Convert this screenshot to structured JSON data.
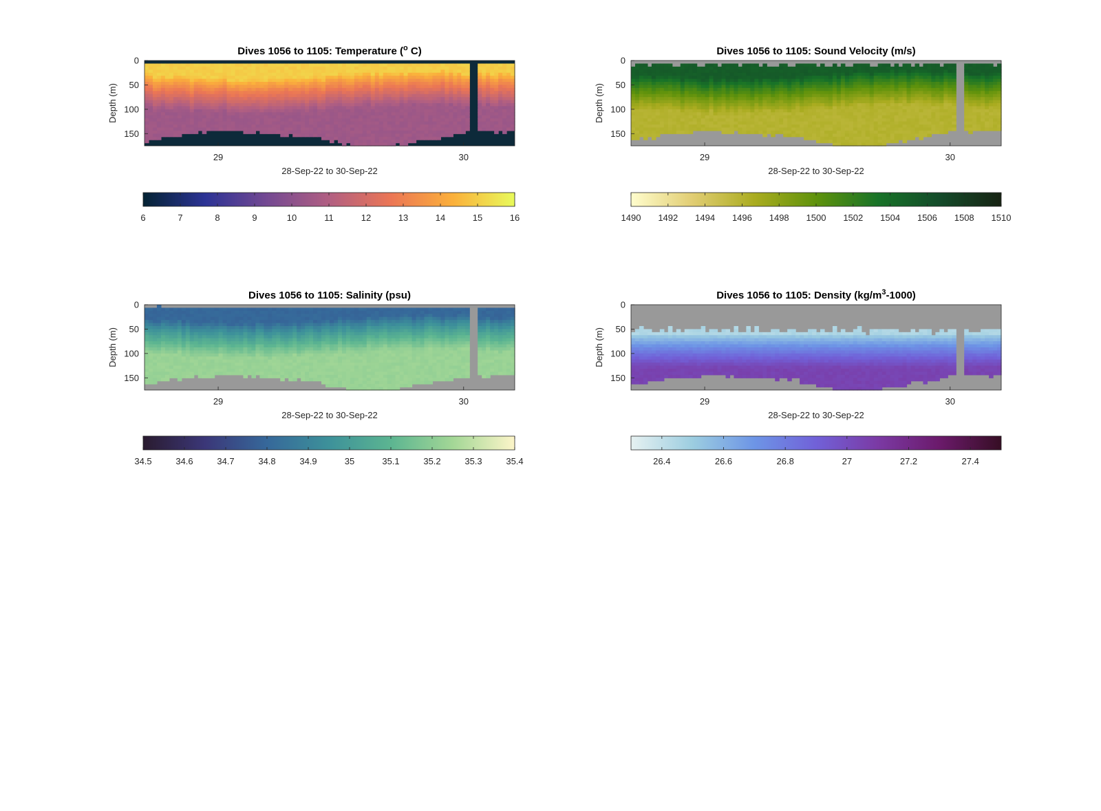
{
  "figure": {
    "background": "#ffffff",
    "no_data_color": "#999999"
  },
  "chart_data": [
    {
      "id": "temperature",
      "type": "heatmap",
      "title": "Dives 1056 to 1105: Temperature (° C)",
      "title_parts": [
        "Dives 1056 to 1105: Temperature (",
        "o",
        " C)"
      ],
      "xlabel": "28-Sep-22 to 30-Sep-22",
      "ylabel": "Depth (m)",
      "x_ticks": [
        "29",
        "30"
      ],
      "y_ticks": [
        "0",
        "50",
        "100",
        "150"
      ],
      "ylim": [
        0,
        175
      ],
      "y_reversed": true,
      "no_data_color": "#0d2a3a",
      "colormap": "thermal",
      "colormap_stops": [
        "#042333",
        "#2c3395",
        "#744992",
        "#b15f82",
        "#eb7655",
        "#fbb03b",
        "#e8fa5b"
      ],
      "colorbar": {
        "min": 6,
        "max": 16,
        "ticks": [
          "6",
          "7",
          "8",
          "9",
          "10",
          "11",
          "12",
          "13",
          "14",
          "15",
          "16"
        ]
      },
      "surface_value": 15.0,
      "mixed_layer_bottom_m": [
        20,
        45,
        30
      ],
      "deep_value": 10.5,
      "bottom_depth_m": [
        165,
        150,
        145,
        150,
        155,
        175,
        175,
        160,
        145,
        145
      ]
    },
    {
      "id": "sound_velocity",
      "type": "heatmap",
      "title": "Dives 1056 to 1105: Sound Velocity (m/s)",
      "title_parts": [
        "Dives 1056 to 1105: Sound Velocity (m/s)"
      ],
      "xlabel": "28-Sep-22 to 30-Sep-22",
      "ylabel": "Depth (m)",
      "x_ticks": [
        "29",
        "30"
      ],
      "y_ticks": [
        "0",
        "50",
        "100",
        "150"
      ],
      "ylim": [
        0,
        175
      ],
      "y_reversed": true,
      "no_data_color": "#999999",
      "colormap": "speed",
      "colormap_stops": [
        "#fffdcd",
        "#e1cd73",
        "#aaac20",
        "#5f920c",
        "#187328",
        "#144b2a",
        "#172313"
      ],
      "colorbar": {
        "min": 1490,
        "max": 1510,
        "ticks": [
          "1490",
          "1492",
          "1494",
          "1496",
          "1498",
          "1500",
          "1502",
          "1504",
          "1506",
          "1508",
          "1510"
        ]
      },
      "surface_value": 1505.2,
      "deep_value": 1496.0,
      "bottom_depth_m": [
        165,
        150,
        145,
        150,
        155,
        175,
        175,
        160,
        145,
        145
      ]
    },
    {
      "id": "salinity",
      "type": "heatmap",
      "title": "Dives 1056 to 1105: Salinity (psu)",
      "title_parts": [
        "Dives 1056 to 1105: Salinity (psu)"
      ],
      "xlabel": "28-Sep-22 to 30-Sep-22",
      "ylabel": "Depth (m)",
      "x_ticks": [
        "29",
        "30"
      ],
      "y_ticks": [
        "0",
        "50",
        "100",
        "150"
      ],
      "ylim": [
        0,
        175
      ],
      "y_reversed": true,
      "no_data_color": "#999999",
      "colormap": "haline",
      "colormap_stops": [
        "#2a1b2f",
        "#3b3778",
        "#36689a",
        "#3d919a",
        "#5cb591",
        "#a3d796",
        "#fdf5c9"
      ],
      "colorbar": {
        "min": 34.5,
        "max": 35.4,
        "ticks": [
          "34.5",
          "34.6",
          "34.7",
          "34.8",
          "34.9",
          "35",
          "35.1",
          "35.2",
          "35.3",
          "35.4"
        ]
      },
      "surface_value": 34.8,
      "deep_value": 35.23,
      "bottom_depth_m": [
        165,
        150,
        145,
        150,
        155,
        175,
        175,
        160,
        145,
        145
      ]
    },
    {
      "id": "density",
      "type": "heatmap",
      "title": "Dives 1056 to 1105: Density (kg/m³-1000)",
      "title_parts": [
        "Dives 1056 to 1105: Density (kg/m",
        "3",
        "-1000)"
      ],
      "xlabel": "28-Sep-22 to 30-Sep-22",
      "ylabel": "Depth (m)",
      "x_ticks": [
        "29",
        "30"
      ],
      "y_ticks": [
        "0",
        "50",
        "100",
        "150"
      ],
      "ylim": [
        0,
        175
      ],
      "y_reversed": true,
      "no_data_color": "#999999",
      "colormap": "dense",
      "colormap_stops": [
        "#e6f1f1",
        "#9ccde0",
        "#6d95e6",
        "#7161d8",
        "#7b3aa4",
        "#6b1a6b",
        "#360e24"
      ],
      "colorbar": {
        "min": 26.3,
        "max": 27.5,
        "ticks": [
          "26.4",
          "26.6",
          "26.8",
          "27",
          "27.2",
          "27.4"
        ]
      },
      "surface_value": 26.45,
      "deep_value": 27.05,
      "bottom_depth_m": [
        165,
        150,
        145,
        150,
        155,
        175,
        175,
        160,
        145,
        145
      ]
    }
  ]
}
